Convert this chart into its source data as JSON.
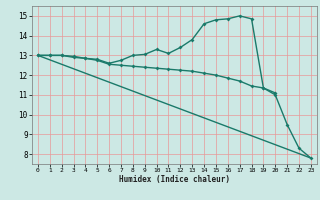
{
  "xlabel": "Humidex (Indice chaleur)",
  "bg_color": "#cce8e4",
  "grid_color": "#e89898",
  "line_color": "#1a7a6a",
  "xlim": [
    -0.5,
    23.5
  ],
  "ylim": [
    7.5,
    15.5
  ],
  "xticks": [
    0,
    1,
    2,
    3,
    4,
    5,
    6,
    7,
    8,
    9,
    10,
    11,
    12,
    13,
    14,
    15,
    16,
    17,
    18,
    19,
    20,
    21,
    22,
    23
  ],
  "yticks": [
    8,
    9,
    10,
    11,
    12,
    13,
    14,
    15
  ],
  "series1_x": [
    0,
    1,
    2,
    3,
    4,
    5,
    6,
    7,
    8,
    9,
    10,
    11,
    12,
    13,
    14,
    15,
    16,
    17,
    18,
    19,
    20,
    21,
    22,
    23
  ],
  "series1_y": [
    13.0,
    13.0,
    13.0,
    12.9,
    12.85,
    12.8,
    12.6,
    12.75,
    13.0,
    13.05,
    13.3,
    13.1,
    13.4,
    13.8,
    14.6,
    14.8,
    14.85,
    15.0,
    14.85,
    11.35,
    11.0,
    9.5,
    8.3,
    7.8
  ],
  "series2_x": [
    0,
    1,
    2,
    3,
    4,
    5,
    6,
    7,
    8,
    9,
    10,
    11,
    12,
    13,
    14,
    15,
    16,
    17,
    18,
    19,
    20
  ],
  "series2_y": [
    13.0,
    13.0,
    13.0,
    12.95,
    12.85,
    12.75,
    12.55,
    12.5,
    12.45,
    12.4,
    12.35,
    12.3,
    12.25,
    12.2,
    12.1,
    12.0,
    11.85,
    11.7,
    11.45,
    11.35,
    11.1
  ],
  "series3_x": [
    0,
    23
  ],
  "series3_y": [
    13.0,
    7.8
  ],
  "marker": "D",
  "marker_size": 2,
  "line_width": 1.0
}
